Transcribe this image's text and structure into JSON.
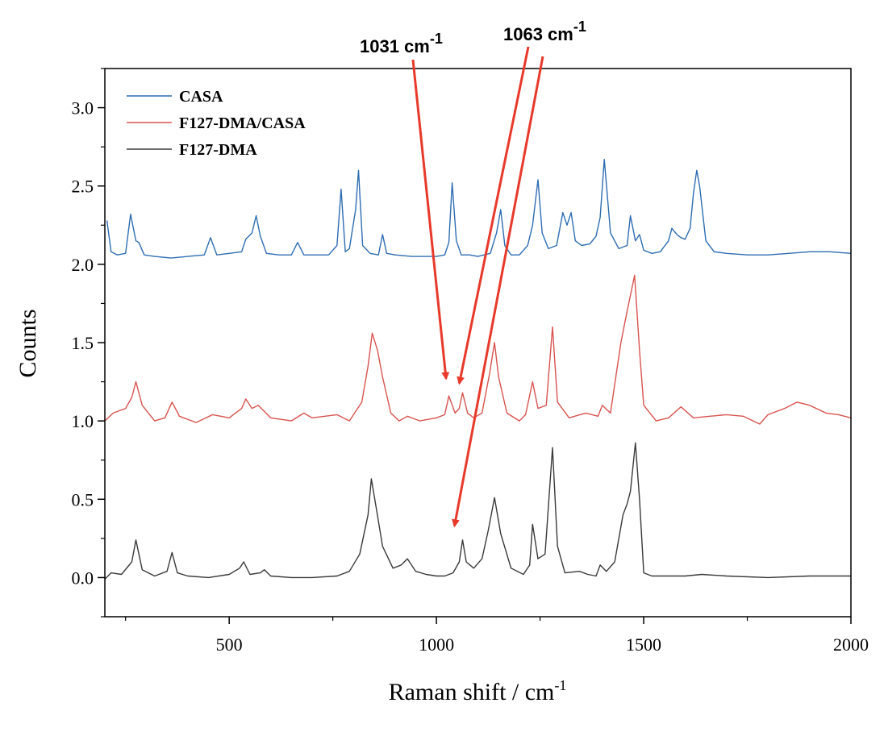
{
  "chart_data": {
    "type": "line",
    "xlabel_main": "Raman shift / cm",
    "xlabel_sup": "-1",
    "ylabel": "Counts",
    "xlim": [
      200,
      2000
    ],
    "ylim": [
      -0.25,
      3.25
    ],
    "x_ticks": [
      500,
      1000,
      1500,
      2000
    ],
    "x_tick_labels": [
      "500",
      "1000",
      "1500",
      "2000"
    ],
    "y_ticks": [
      0.0,
      0.5,
      1.0,
      1.5,
      2.0,
      2.5,
      3.0
    ],
    "y_tick_labels": [
      "0.0",
      "0.5",
      "1.0",
      "1.5",
      "2.0",
      "2.5",
      "3.0"
    ],
    "grid": false,
    "legend_position": "top-left",
    "series": [
      {
        "name": "CASA",
        "color": "#2e6db3",
        "x": [
          205,
          215,
          230,
          250,
          262,
          275,
          282,
          295,
          320,
          360,
          400,
          440,
          455,
          470,
          500,
          530,
          540,
          555,
          565,
          575,
          590,
          620,
          650,
          665,
          680,
          700,
          740,
          760,
          770,
          780,
          790,
          805,
          812,
          822,
          840,
          860,
          870,
          880,
          900,
          940,
          1000,
          1020,
          1030,
          1038,
          1048,
          1060,
          1080,
          1100,
          1130,
          1145,
          1155,
          1165,
          1180,
          1200,
          1220,
          1232,
          1245,
          1255,
          1270,
          1290,
          1305,
          1315,
          1325,
          1335,
          1350,
          1370,
          1385,
          1395,
          1405,
          1420,
          1440,
          1460,
          1468,
          1480,
          1490,
          1500,
          1520,
          1540,
          1560,
          1568,
          1580,
          1590,
          1600,
          1612,
          1620,
          1628,
          1635,
          1650,
          1670,
          1700,
          1750,
          1800,
          1850,
          1900,
          1950,
          2000
        ],
        "y": [
          2.28,
          2.08,
          2.06,
          2.07,
          2.32,
          2.15,
          2.14,
          2.06,
          2.05,
          2.04,
          2.05,
          2.06,
          2.17,
          2.06,
          2.07,
          2.08,
          2.16,
          2.2,
          2.31,
          2.18,
          2.07,
          2.06,
          2.06,
          2.14,
          2.06,
          2.06,
          2.06,
          2.12,
          2.48,
          2.08,
          2.1,
          2.35,
          2.6,
          2.12,
          2.07,
          2.06,
          2.19,
          2.07,
          2.06,
          2.05,
          2.05,
          2.06,
          2.14,
          2.52,
          2.15,
          2.06,
          2.06,
          2.05,
          2.07,
          2.2,
          2.35,
          2.12,
          2.06,
          2.06,
          2.12,
          2.25,
          2.54,
          2.2,
          2.1,
          2.12,
          2.33,
          2.25,
          2.33,
          2.15,
          2.12,
          2.13,
          2.18,
          2.3,
          2.67,
          2.2,
          2.1,
          2.12,
          2.31,
          2.15,
          2.19,
          2.09,
          2.07,
          2.08,
          2.15,
          2.23,
          2.19,
          2.17,
          2.16,
          2.23,
          2.45,
          2.6,
          2.5,
          2.15,
          2.08,
          2.07,
          2.06,
          2.06,
          2.07,
          2.08,
          2.08,
          2.07
        ]
      },
      {
        "name": "F127-DMA/CASA",
        "color": "#d9534f",
        "x": [
          200,
          220,
          250,
          265,
          275,
          290,
          320,
          345,
          362,
          380,
          420,
          460,
          500,
          530,
          540,
          555,
          570,
          600,
          650,
          680,
          700,
          760,
          790,
          820,
          835,
          845,
          858,
          870,
          890,
          910,
          930,
          960,
          1000,
          1020,
          1030,
          1045,
          1055,
          1063,
          1075,
          1090,
          1110,
          1128,
          1140,
          1150,
          1170,
          1200,
          1215,
          1232,
          1245,
          1265,
          1280,
          1292,
          1320,
          1360,
          1390,
          1400,
          1420,
          1445,
          1460,
          1478,
          1490,
          1500,
          1530,
          1560,
          1590,
          1620,
          1660,
          1700,
          1740,
          1780,
          1800,
          1840,
          1870,
          1900,
          1940,
          1970,
          2000
        ],
        "y": [
          1.0,
          1.05,
          1.08,
          1.15,
          1.25,
          1.1,
          1.0,
          1.02,
          1.12,
          1.03,
          0.99,
          1.04,
          1.02,
          1.08,
          1.14,
          1.08,
          1.1,
          1.02,
          1.0,
          1.05,
          1.02,
          1.04,
          1.0,
          1.12,
          1.35,
          1.56,
          1.45,
          1.28,
          1.05,
          1.0,
          1.03,
          1.0,
          1.02,
          1.04,
          1.16,
          1.05,
          1.08,
          1.18,
          1.05,
          1.02,
          1.05,
          1.3,
          1.5,
          1.28,
          1.05,
          1.0,
          1.04,
          1.25,
          1.08,
          1.1,
          1.6,
          1.12,
          1.02,
          1.05,
          1.03,
          1.1,
          1.05,
          1.5,
          1.7,
          1.93,
          1.45,
          1.1,
          1.0,
          1.02,
          1.09,
          1.02,
          1.03,
          1.04,
          1.03,
          0.98,
          1.04,
          1.08,
          1.12,
          1.1,
          1.05,
          1.04,
          1.02
        ]
      },
      {
        "name": "F127-DMA",
        "color": "#3a3a3a",
        "x": [
          200,
          215,
          240,
          265,
          275,
          290,
          320,
          350,
          362,
          375,
          400,
          450,
          500,
          525,
          535,
          550,
          575,
          585,
          600,
          650,
          700,
          760,
          790,
          815,
          835,
          843,
          855,
          870,
          895,
          915,
          930,
          950,
          975,
          1000,
          1020,
          1040,
          1055,
          1063,
          1072,
          1090,
          1110,
          1125,
          1140,
          1155,
          1180,
          1210,
          1225,
          1232,
          1245,
          1262,
          1280,
          1292,
          1310,
          1345,
          1365,
          1385,
          1395,
          1410,
          1430,
          1450,
          1460,
          1468,
          1480,
          1490,
          1500,
          1520,
          1560,
          1600,
          1640,
          1700,
          1800,
          1900,
          2000
        ],
        "y": [
          -0.01,
          0.03,
          0.02,
          0.1,
          0.24,
          0.05,
          0.01,
          0.04,
          0.16,
          0.03,
          0.01,
          0.0,
          0.02,
          0.06,
          0.1,
          0.02,
          0.03,
          0.05,
          0.01,
          0.0,
          0.0,
          0.01,
          0.04,
          0.15,
          0.4,
          0.63,
          0.44,
          0.2,
          0.06,
          0.08,
          0.12,
          0.04,
          0.02,
          0.01,
          0.01,
          0.03,
          0.1,
          0.24,
          0.1,
          0.06,
          0.12,
          0.3,
          0.51,
          0.28,
          0.06,
          0.02,
          0.08,
          0.34,
          0.12,
          0.15,
          0.83,
          0.2,
          0.03,
          0.04,
          0.02,
          0.01,
          0.08,
          0.04,
          0.1,
          0.4,
          0.47,
          0.55,
          0.86,
          0.5,
          0.03,
          0.01,
          0.01,
          0.01,
          0.02,
          0.01,
          0.0,
          0.01,
          0.01
        ]
      }
    ],
    "annotations": [
      {
        "text_main": "1031 cm",
        "text_sup": "-1",
        "arrows": [
          {
            "x": 1031,
            "y": 1.27
          }
        ]
      },
      {
        "text_main": "1063 cm",
        "text_sup": "-1",
        "arrows": [
          {
            "x": 1063,
            "y": 1.24
          },
          {
            "x": 1063,
            "y": 0.33
          }
        ]
      }
    ]
  }
}
